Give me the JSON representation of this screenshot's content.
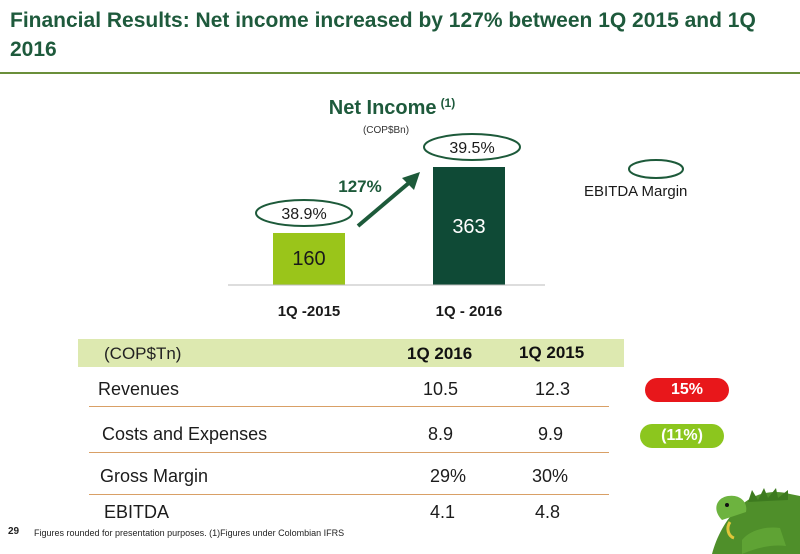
{
  "slide": {
    "title": "Financial Results: Net  income increased by 127% between 1Q 2015 and 1Q 2016",
    "page_number": "29",
    "footnote": "Figures rounded for presentation purposes.  (1)Figures under Colombian IFRS"
  },
  "chart_data": {
    "type": "bar",
    "title": "Net Income",
    "title_superscript": "(1)",
    "subtitle": "(COP$Bn)",
    "categories": [
      "1Q -2015",
      "1Q - 2016"
    ],
    "values": [
      160,
      363
    ],
    "value_labels": [
      "160",
      "363"
    ],
    "bar_colors": [
      "#9ac51a",
      "#0f4a36"
    ],
    "label_colors": [
      "#1a1a1a",
      "#ffffff"
    ],
    "ebitda_margins": [
      "38.9%",
      "39.5%"
    ],
    "growth_label": "127%",
    "legend": {
      "label": "EBITDA Margin",
      "position": "right"
    },
    "ylim": [
      0,
      363
    ],
    "grid": false
  },
  "table": {
    "unit_label": "(COP$Tn)",
    "columns": [
      "1Q 2016",
      "1Q 2015"
    ],
    "rows": [
      {
        "label": "Revenues",
        "values": [
          "10.5",
          "12.3"
        ],
        "change": "15%",
        "change_color": "#e8171b"
      },
      {
        "label": "Costs and Expenses",
        "values": [
          "8.9",
          "9.9"
        ],
        "change": "(11%)",
        "change_color": "#8cc61e"
      },
      {
        "label": "Gross Margin",
        "values": [
          "29%",
          "30%"
        ]
      },
      {
        "label": "EBITDA",
        "values": [
          "4.1",
          "4.8"
        ]
      }
    ]
  }
}
